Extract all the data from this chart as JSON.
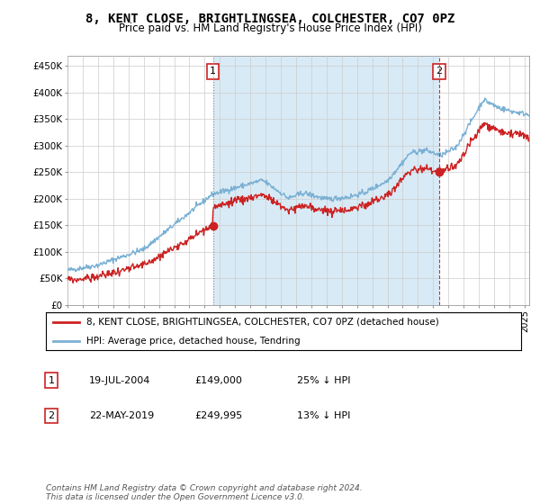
{
  "title": "8, KENT CLOSE, BRIGHTLINGSEA, COLCHESTER, CO7 0PZ",
  "subtitle": "Price paid vs. HM Land Registry's House Price Index (HPI)",
  "title_fontsize": 10,
  "subtitle_fontsize": 8.5,
  "ylabel_ticks": [
    "£0",
    "£50K",
    "£100K",
    "£150K",
    "£200K",
    "£250K",
    "£300K",
    "£350K",
    "£400K",
    "£450K"
  ],
  "ytick_values": [
    0,
    50000,
    100000,
    150000,
    200000,
    250000,
    300000,
    350000,
    400000,
    450000
  ],
  "ylim": [
    0,
    470000
  ],
  "xlim_start": 1995.0,
  "xlim_end": 2025.3,
  "hpi_color": "#7ab0d4",
  "hpi_fill_color": "#d8eaf5",
  "price_color": "#cc2222",
  "vline1_color": "#aaaaaa",
  "vline2_color": "#cc3333",
  "marker1_x": 2004.54,
  "marker1_y": 149000,
  "marker1_label": "1",
  "marker2_x": 2019.38,
  "marker2_y": 249995,
  "marker2_label": "2",
  "legend_line1": "8, KENT CLOSE, BRIGHTLINGSEA, COLCHESTER, CO7 0PZ (detached house)",
  "legend_line2": "HPI: Average price, detached house, Tendring",
  "table_row1": [
    "1",
    "19-JUL-2004",
    "£149,000",
    "25% ↓ HPI"
  ],
  "table_row2": [
    "2",
    "22-MAY-2019",
    "£249,995",
    "13% ↓ HPI"
  ],
  "footer": "Contains HM Land Registry data © Crown copyright and database right 2024.\nThis data is licensed under the Open Government Licence v3.0.",
  "background_color": "#ffffff",
  "grid_color": "#cccccc"
}
